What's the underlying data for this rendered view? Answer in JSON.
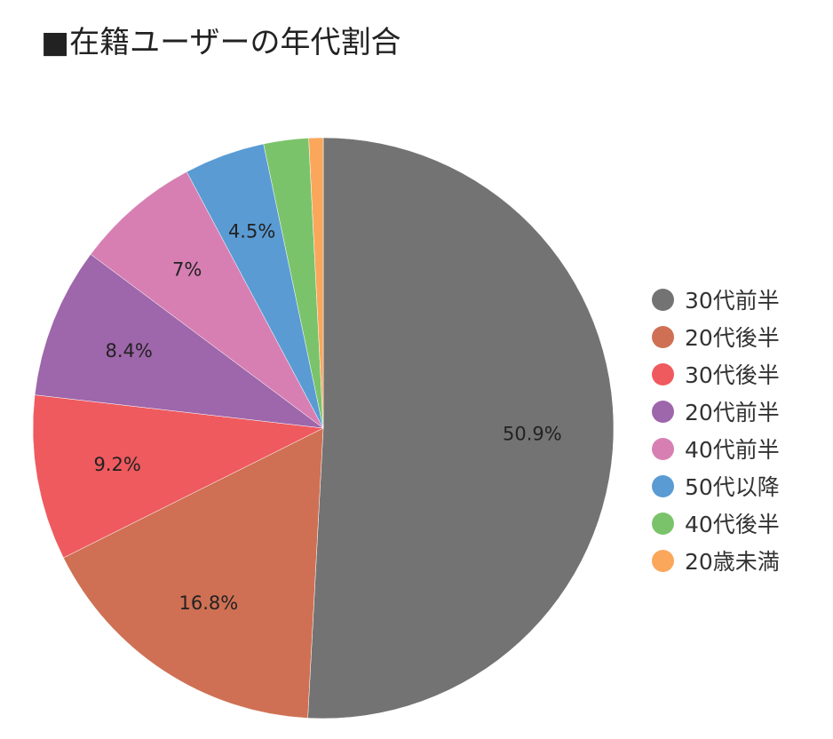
{
  "chart_data": {
    "type": "pie",
    "title": "■在籍ユーザーの年代割合",
    "legend_position": "right",
    "slices": [
      {
        "label": "30代前半",
        "value": 50.9,
        "value_label": "50.9%",
        "color": "#737373"
      },
      {
        "label": "20代後半",
        "value": 16.8,
        "value_label": "16.8%",
        "color": "#cf7054"
      },
      {
        "label": "30代後半",
        "value": 9.2,
        "value_label": "9.2%",
        "color": "#ef5a5e"
      },
      {
        "label": "20代前半",
        "value": 8.4,
        "value_label": "8.4%",
        "color": "#9e66ab"
      },
      {
        "label": "40代前半",
        "value": 7,
        "value_label": "7%",
        "color": "#d77fb3"
      },
      {
        "label": "50代以降",
        "value": 4.5,
        "value_label": "4.5%",
        "color": "#5a9bd4"
      },
      {
        "label": "40代後半",
        "value": 2.5,
        "value_label": "",
        "color": "#7ac36a"
      },
      {
        "label": "20歳未満",
        "value": 0.8,
        "value_label": "",
        "color": "#faa75b"
      }
    ]
  }
}
